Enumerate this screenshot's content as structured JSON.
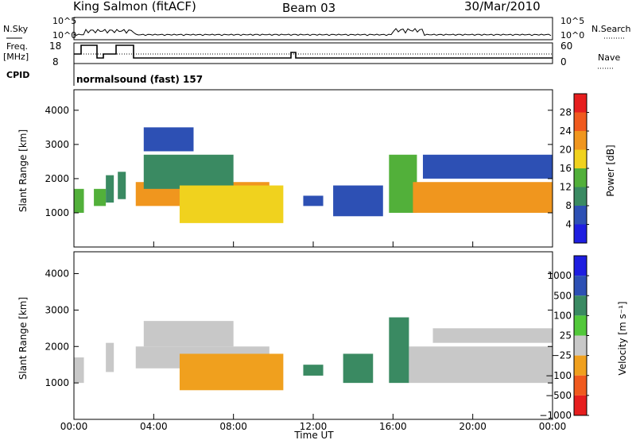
{
  "header": {
    "station": "King Salmon (fitACF)",
    "beam": "Beam 03",
    "date": "30/Mar/2010"
  },
  "top_panel": {
    "left_top_label": "N.Sky",
    "left_freq_label_1": "Freq.",
    "left_freq_label_2": "[MHz]",
    "left_cpid_label": "CPID",
    "right_top_label": "N.Search",
    "right_nave_label": "Nave",
    "nsky_ticks": [
      "10^5",
      "10^0"
    ],
    "nsearch_ticks": [
      "10^5",
      "10^0"
    ],
    "freq_ticks": [
      "18",
      "8"
    ],
    "nave_ticks": [
      "60",
      "0"
    ],
    "cpid_text": "normalsound (fast) 157"
  },
  "chart_data": [
    {
      "type": "heatmap",
      "name": "power",
      "ylabel": "Slant Range [km]",
      "yticks": [
        1000,
        2000,
        3000,
        4000
      ],
      "ylim": [
        0,
        4600
      ],
      "colorbar_label": "Power [dB]",
      "colorbar_ticks": [
        4,
        8,
        12,
        16,
        20,
        24,
        28
      ],
      "colorbar_range": [
        0,
        32
      ],
      "colors": [
        "#1e1ee0",
        "#2d50b4",
        "#3a8a62",
        "#52b03a",
        "#f0d21e",
        "#f0961e",
        "#f05a1e",
        "#e61e1e"
      ],
      "regions": [
        {
          "t": [
            0.0,
            0.5
          ],
          "r": [
            1000,
            1700
          ],
          "v": 14
        },
        {
          "t": [
            1.0,
            1.6
          ],
          "r": [
            1200,
            1700
          ],
          "v": 12
        },
        {
          "t": [
            1.6,
            2.0
          ],
          "r": [
            1300,
            2100
          ],
          "v": 9
        },
        {
          "t": [
            2.2,
            2.6
          ],
          "r": [
            1400,
            2200
          ],
          "v": 10
        },
        {
          "t": [
            3.1,
            9.8
          ],
          "r": [
            1200,
            1900
          ],
          "v": 20
        },
        {
          "t": [
            3.5,
            8.0
          ],
          "r": [
            1700,
            2700
          ],
          "v": 10
        },
        {
          "t": [
            3.5,
            6.0
          ],
          "r": [
            2800,
            3500
          ],
          "v": 6
        },
        {
          "t": [
            5.3,
            10.5
          ],
          "r": [
            700,
            1800
          ],
          "v": 17
        },
        {
          "t": [
            11.5,
            12.5
          ],
          "r": [
            1200,
            1500
          ],
          "v": 5
        },
        {
          "t": [
            13.0,
            15.5
          ],
          "r": [
            900,
            1800
          ],
          "v": 5
        },
        {
          "t": [
            15.8,
            17.2
          ],
          "r": [
            1000,
            2700
          ],
          "v": 12
        },
        {
          "t": [
            17.0,
            24.0
          ],
          "r": [
            1000,
            1900
          ],
          "v": 21
        },
        {
          "t": [
            17.5,
            24.0
          ],
          "r": [
            2000,
            2700
          ],
          "v": 5
        }
      ]
    },
    {
      "type": "heatmap",
      "name": "velocity",
      "ylabel": "Slant Range [km]",
      "xlabel": "Time UT",
      "xticks": [
        "00:00",
        "04:00",
        "08:00",
        "12:00",
        "16:00",
        "20:00",
        "00:00"
      ],
      "yticks": [
        1000,
        2000,
        3000,
        4000
      ],
      "ylim": [
        0,
        4600
      ],
      "colorbar_label": "Velocity [m s⁻¹]",
      "colorbar_ticks": [
        "1000",
        "500",
        "100",
        "25",
        "−25",
        "−100",
        "−500",
        "−1000"
      ],
      "colors": [
        "#1e1ee0",
        "#2d50b4",
        "#3a8a62",
        "#52c83a",
        "#c8c8c8",
        "#f0a01e",
        "#f05a1e",
        "#e61e1e"
      ],
      "regions": [
        {
          "t": [
            0.0,
            0.5
          ],
          "r": [
            1000,
            1700
          ],
          "v": 0
        },
        {
          "t": [
            1.6,
            2.0
          ],
          "r": [
            1300,
            2100
          ],
          "v": 0
        },
        {
          "t": [
            3.1,
            9.8
          ],
          "r": [
            1400,
            2000
          ],
          "v": 0
        },
        {
          "t": [
            3.5,
            8.0
          ],
          "r": [
            2000,
            2700
          ],
          "v": 0
        },
        {
          "t": [
            5.3,
            10.5
          ],
          "r": [
            800,
            1800
          ],
          "v": -100
        },
        {
          "t": [
            11.5,
            12.5
          ],
          "r": [
            1200,
            1500
          ],
          "v": 100
        },
        {
          "t": [
            13.5,
            15.0
          ],
          "r": [
            1000,
            1800
          ],
          "v": 100
        },
        {
          "t": [
            15.8,
            16.8
          ],
          "r": [
            1000,
            2800
          ],
          "v": 100
        },
        {
          "t": [
            16.8,
            24.0
          ],
          "r": [
            1000,
            2000
          ],
          "v": 0
        },
        {
          "t": [
            18.0,
            24.0
          ],
          "r": [
            2100,
            2500
          ],
          "v": 0
        }
      ]
    }
  ]
}
